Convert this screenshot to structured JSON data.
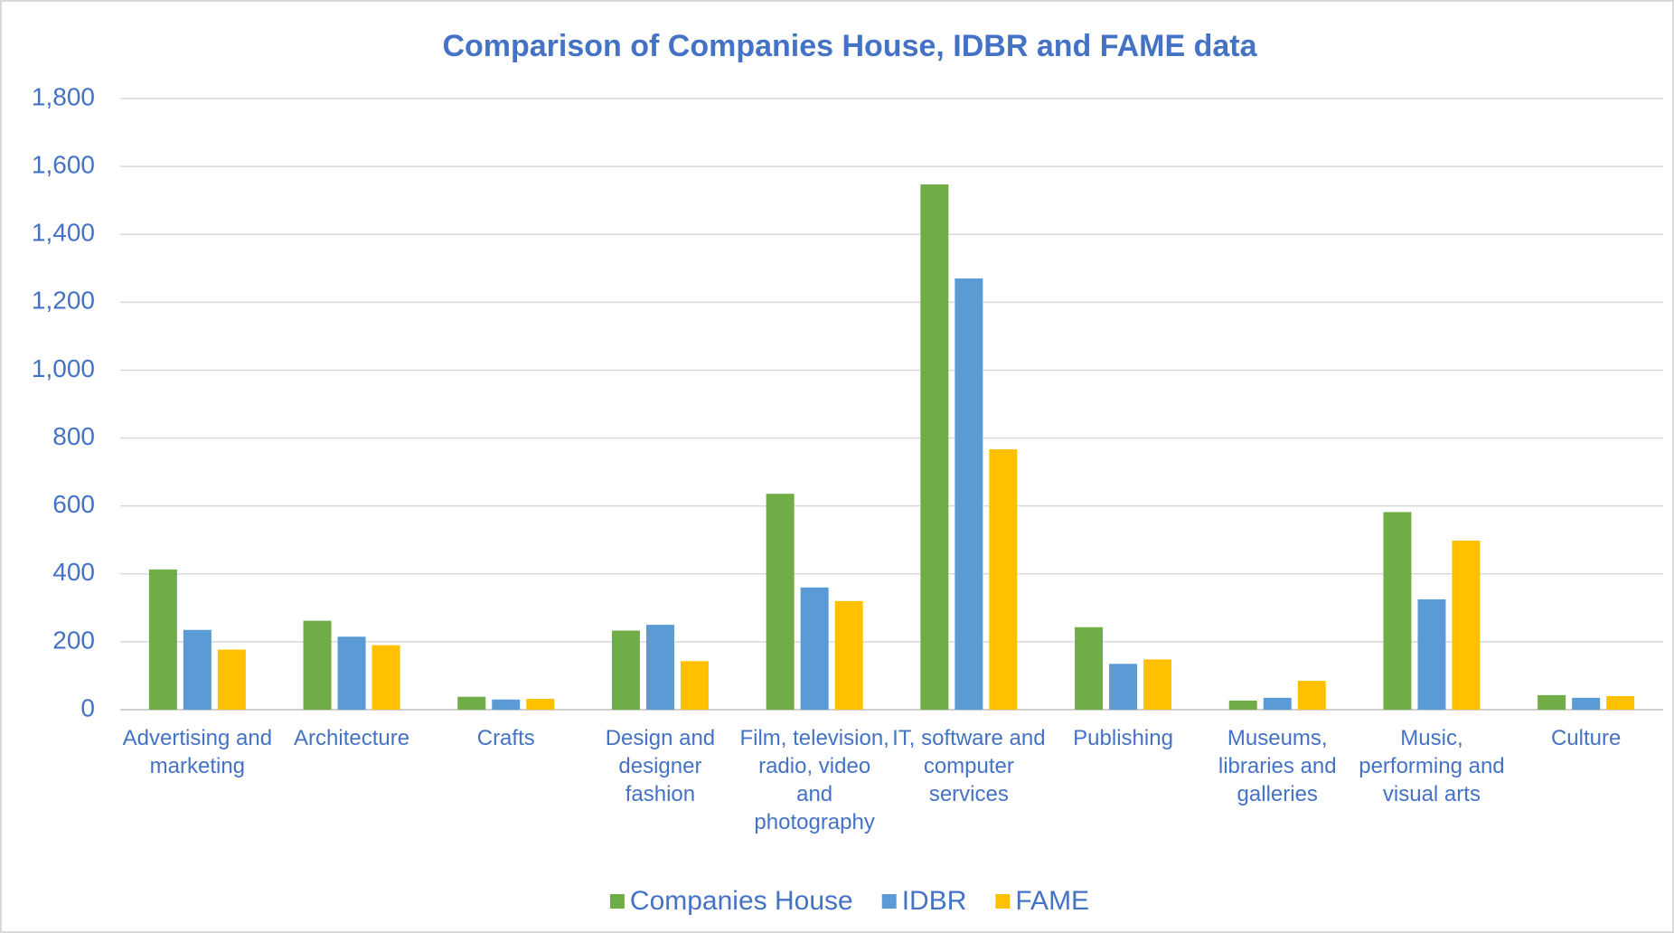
{
  "chart_data": {
    "type": "bar",
    "title": "Comparison of Companies House, IDBR and FAME data",
    "categories": [
      "Advertising and marketing",
      "Architecture",
      "Crafts",
      "Design and designer fashion",
      "Film, television, radio, video and photography",
      "IT, software and computer services",
      "Publishing",
      "Museums, libraries and galleries",
      "Music, performing and visual arts",
      "Culture"
    ],
    "series": [
      {
        "name": "Companies House",
        "color": "#70ad47",
        "values": [
          413,
          262,
          38,
          233,
          636,
          1547,
          243,
          27,
          582,
          43
        ]
      },
      {
        "name": "IDBR",
        "color": "#5b9bd5",
        "values": [
          235,
          215,
          30,
          250,
          360,
          1270,
          135,
          35,
          325,
          35
        ]
      },
      {
        "name": "FAME",
        "color": "#ffc000",
        "values": [
          177,
          190,
          32,
          143,
          320,
          767,
          148,
          85,
          498,
          40
        ]
      }
    ],
    "ylim": [
      0,
      1800
    ],
    "yticks": [
      0,
      200,
      400,
      600,
      800,
      {
        "value": 1000,
        "label": "1,000"
      },
      {
        "value": 1200,
        "label": "1,200"
      },
      {
        "value": 1400,
        "label": "1,400"
      },
      {
        "value": 1600,
        "label": "1,600"
      },
      {
        "value": 1800,
        "label": "1,800"
      }
    ],
    "grid": true,
    "legend": "bottom"
  }
}
